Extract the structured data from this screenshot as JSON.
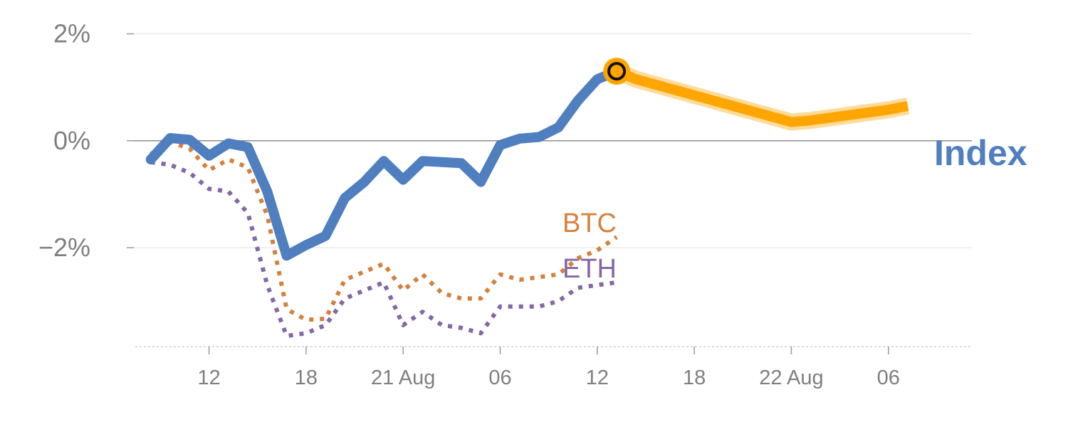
{
  "chart_data": {
    "type": "line",
    "yticks": [
      {
        "value": 2,
        "label": "2%"
      },
      {
        "value": 0,
        "label": "0%"
      },
      {
        "value": -2,
        "label": "−2%"
      }
    ],
    "ylim": [
      -3.85,
      2.1
    ],
    "xlim": [
      -0.8,
      42.3
    ],
    "xticks": [
      {
        "x": 3,
        "label": "12"
      },
      {
        "x": 8,
        "label": "18"
      },
      {
        "x": 13,
        "label": "21 Aug"
      },
      {
        "x": 18,
        "label": "06"
      },
      {
        "x": 23,
        "label": "12"
      },
      {
        "x": 28,
        "label": "18"
      },
      {
        "x": 33,
        "label": "22 Aug"
      },
      {
        "x": 38,
        "label": "06"
      }
    ],
    "series": [
      {
        "name": "Index",
        "color": "#4f7fbf",
        "style": "solid",
        "x": [
          0,
          1,
          2,
          3,
          4,
          5,
          6,
          7,
          8,
          9,
          10,
          11,
          12,
          13,
          14,
          15,
          16,
          17,
          18,
          19,
          20
        ],
        "y": [
          -0.35,
          0.05,
          0.02,
          -0.28,
          -0.05,
          -0.12,
          -0.95,
          -2.15,
          -1.95,
          -1.78,
          -1.07,
          -0.77,
          -0.38,
          -0.73,
          -0.38,
          -0.4,
          -0.42,
          -0.77,
          -0.08,
          0.04,
          0.07
        ]
      },
      {
        "name": "",
        "color": "#4f7fbf",
        "style": "solid",
        "x": [
          20,
          21,
          22,
          23,
          24
        ],
        "y": [
          0.07,
          0.25,
          0.75,
          1.15,
          1.3
        ]
      },
      {
        "name": "BTC",
        "color": "#d5813d",
        "style": "dotted",
        "x": [
          0,
          1,
          2,
          3,
          4,
          5,
          6,
          7,
          8,
          9,
          10,
          11,
          12,
          13,
          14,
          15,
          16,
          17,
          18,
          19,
          20,
          21,
          22,
          23,
          24
        ],
        "y": [
          -0.25,
          -0.02,
          -0.15,
          -0.55,
          -0.35,
          -0.5,
          -1.4,
          -3.15,
          -3.35,
          -3.33,
          -2.6,
          -2.45,
          -2.3,
          -2.8,
          -2.5,
          -2.85,
          -2.95,
          -2.95,
          -2.5,
          -2.6,
          -2.55,
          -2.5,
          -2.2,
          -2.05,
          -1.8
        ]
      },
      {
        "name": "ETH",
        "color": "#8467a6",
        "style": "dotted",
        "x": [
          0,
          1,
          2,
          3,
          4,
          5,
          6,
          7,
          8,
          9,
          10,
          11,
          12,
          13,
          14,
          15,
          16,
          17,
          18,
          19,
          20,
          21,
          22,
          23,
          24
        ],
        "y": [
          -0.4,
          -0.45,
          -0.6,
          -0.9,
          -0.95,
          -1.35,
          -2.7,
          -3.65,
          -3.6,
          -3.45,
          -2.95,
          -2.8,
          -2.65,
          -3.45,
          -3.2,
          -3.45,
          -3.5,
          -3.6,
          -3.1,
          -3.1,
          -3.1,
          -3.0,
          -2.75,
          -2.7,
          -2.65
        ]
      },
      {
        "name": "",
        "color": "#ffa500",
        "style": "forecast",
        "x": [
          24,
          25,
          33,
          34,
          38,
          39
        ],
        "y": [
          1.3,
          1.15,
          0.35,
          0.38,
          0.58,
          0.65
        ]
      }
    ]
  },
  "legend_labels": {
    "btc": "BTC",
    "eth": "ETH",
    "index": "Index"
  }
}
